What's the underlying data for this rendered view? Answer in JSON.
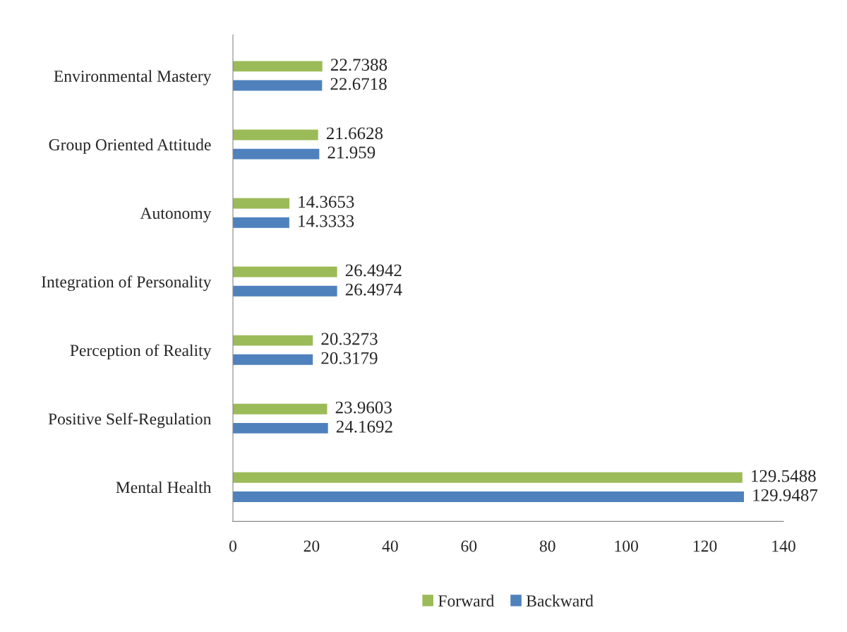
{
  "chart_data": {
    "type": "bar",
    "orientation": "horizontal",
    "categories": [
      "Environmental Mastery",
      "Group Oriented Attitude",
      "Autonomy",
      "Integration of Personality",
      "Perception of Reality",
      "Positive Self-Regulation",
      "Mental Health"
    ],
    "series": [
      {
        "name": "Forward",
        "color": "#9bbb59",
        "values": [
          22.7388,
          21.6628,
          14.3653,
          26.4942,
          20.3273,
          23.9603,
          129.5488
        ]
      },
      {
        "name": "Backward",
        "color": "#4f81bd",
        "values": [
          22.6718,
          21.959,
          14.3333,
          26.4974,
          20.3179,
          24.1692,
          129.9487
        ]
      }
    ],
    "xlim": [
      0,
      140
    ],
    "xticks": [
      0,
      20,
      40,
      60,
      80,
      100,
      120,
      140
    ],
    "data_labels": true,
    "grid": false,
    "legend": "bottom"
  }
}
